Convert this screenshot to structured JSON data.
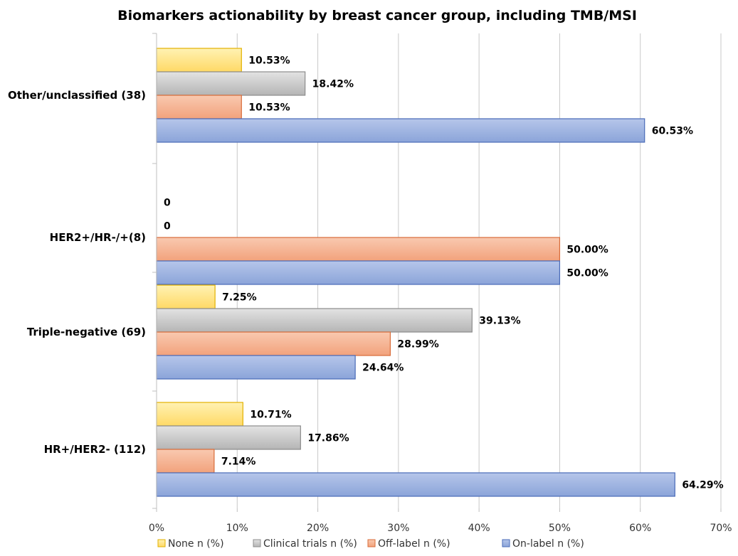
{
  "chart_data": {
    "type": "bar",
    "orientation": "horizontal",
    "title": "Biomarkers actionability by breast cancer group, including TMB/MSI",
    "categories": [
      "Other/unclassified (38)",
      "HER2+/HR-/+(8)",
      "Triple-negative (69)",
      "HR+/HER2- (112)"
    ],
    "series": [
      {
        "name": "None n (%)",
        "color": "#ffd966",
        "values": [
          10.53,
          0,
          7.25,
          10.71
        ],
        "labels": [
          "10.53%",
          "0",
          "7.25%",
          "10.71%"
        ]
      },
      {
        "name": "Clinical trials n (%)",
        "color": "#bfbfbf",
        "values": [
          18.42,
          0,
          39.13,
          17.86
        ],
        "labels": [
          "18.42%",
          "0",
          "39.13%",
          "17.86%"
        ]
      },
      {
        "name": "Off-label n (%)",
        "color": "#f4a582",
        "values": [
          10.53,
          50.0,
          28.99,
          7.14
        ],
        "labels": [
          "10.53%",
          "50.00%",
          "28.99%",
          "7.14%"
        ]
      },
      {
        "name": "On-label n (%)",
        "color": "#8ea9db",
        "values": [
          60.53,
          50.0,
          24.64,
          64.29
        ],
        "labels": [
          "60.53%",
          "50.00%",
          "24.64%",
          "64.29%"
        ]
      }
    ],
    "xlim": [
      0,
      70
    ],
    "xticks": [
      0,
      10,
      20,
      30,
      40,
      50,
      60,
      70
    ],
    "xtick_labels": [
      "0%",
      "10%",
      "20%",
      "30%",
      "40%",
      "50%",
      "60%",
      "70%"
    ],
    "grid": true,
    "legend_position": "bottom"
  }
}
